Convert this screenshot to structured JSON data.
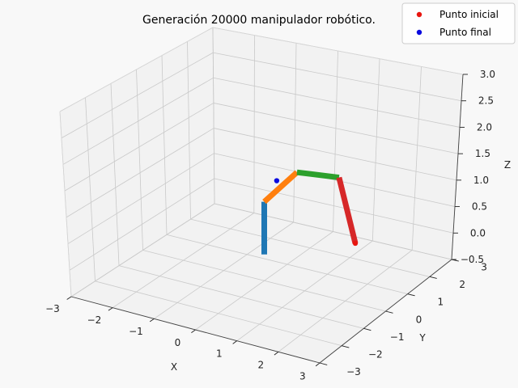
{
  "chart_data": {
    "type": "scatter",
    "projection": "3d",
    "title": "Generación 20000 manipulador robótico.",
    "xlabel": "X",
    "ylabel": "Y",
    "zlabel": "Z",
    "xlim": [
      -3,
      3
    ],
    "ylim": [
      -3,
      3
    ],
    "zlim": [
      -0.5,
      3
    ],
    "xticks": [
      -3,
      -2,
      -1,
      0,
      1,
      2,
      3
    ],
    "yticks": [
      -3,
      -2,
      -1,
      0,
      1,
      2,
      3
    ],
    "zticks": [
      -0.5,
      0.0,
      0.5,
      1.0,
      1.5,
      2.0,
      2.5,
      3.0
    ],
    "xtick_labels": [
      "−3",
      "−2",
      "−1",
      "0",
      "1",
      "2",
      "3"
    ],
    "ytick_labels": [
      "−3",
      "−2",
      "−1",
      "0",
      "1",
      "2",
      "3"
    ],
    "ztick_labels": [
      "−0.5",
      "0.0",
      "0.5",
      "1.0",
      "1.5",
      "2.0",
      "2.5",
      "3.0"
    ],
    "grid": true,
    "legend_position": "top-right",
    "series": [
      {
        "name": "Punto inicial",
        "color": "#e8150f",
        "points": [
          {
            "x": 2.05,
            "y": 0.3,
            "z": 0.5
          }
        ]
      },
      {
        "name": "Punto final",
        "color": "#0a0adf",
        "points": [
          {
            "x": -1.2,
            "y": 2.6,
            "z": 0.4
          }
        ]
      }
    ],
    "segments": [
      {
        "color": "#1f77b4",
        "from": [
          0,
          0,
          0
        ],
        "to": [
          0,
          0,
          1
        ]
      },
      {
        "color": "#ff7f0e",
        "from": [
          0,
          0,
          1
        ],
        "to": [
          0.5,
          0.5,
          1.5
        ]
      },
      {
        "color": "#2ca02c",
        "from": [
          0.5,
          0.5,
          1.5
        ],
        "to": [
          1.4,
          0.7,
          1.5
        ]
      },
      {
        "color": "#d62728",
        "from": [
          1.4,
          0.7,
          1.5
        ],
        "to": [
          2.05,
          0.3,
          0.5
        ]
      }
    ]
  }
}
